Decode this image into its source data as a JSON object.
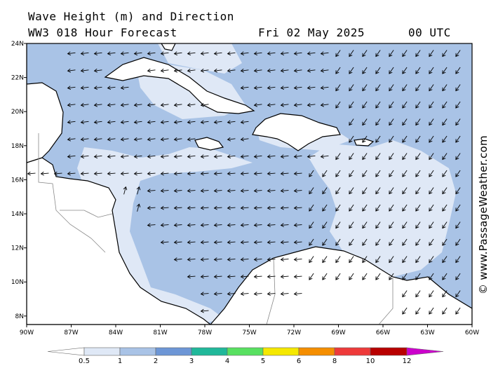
{
  "title": {
    "line1": "Wave Height (m) and Direction",
    "line2": "WW3 018 Hour Forecast",
    "date": "Fri 02 May 2025",
    "time": "00 UTC"
  },
  "credit": "© www.PassageWeather.com",
  "map": {
    "lon_labels": [
      "90W",
      "87W",
      "84W",
      "81W",
      "78W",
      "75W",
      "72W",
      "69W",
      "66W",
      "63W",
      "60W"
    ],
    "lat_labels": [
      "24N",
      "22N",
      "20N",
      "18N",
      "16N",
      "14N",
      "12N",
      "10N",
      "8N"
    ],
    "lon_range": [
      -90,
      -60
    ],
    "lat_range": [
      7.5,
      24
    ]
  },
  "legend": {
    "labels": [
      "0.5",
      "1",
      "2",
      "3",
      "4",
      "5",
      "6",
      "8",
      "10",
      "12"
    ],
    "colors": [
      "#dfe8f6",
      "#a9c3e6",
      "#6d96d6",
      "#20b89a",
      "#58e060",
      "#f5e800",
      "#f58e00",
      "#ee3a3a",
      "#b80000",
      "#cc00cc"
    ]
  },
  "colors": {
    "sea_low": "#dfe8f6",
    "sea_mid": "#a9c3e6",
    "land": "#ffffff"
  }
}
